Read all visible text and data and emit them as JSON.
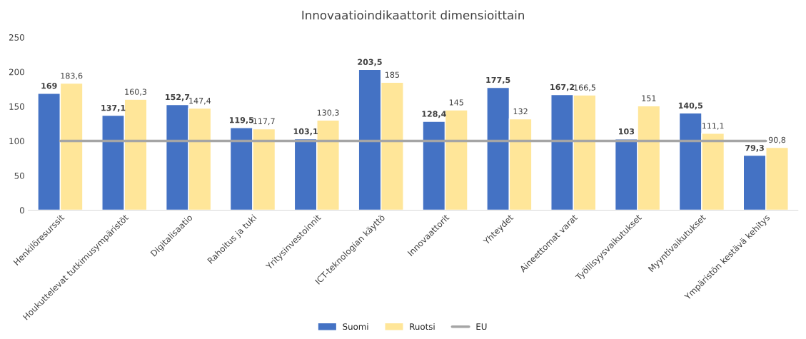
{
  "chart_data": {
    "type": "bar",
    "title": "Innovaatioindikaattorit dimensioittain",
    "categories": [
      "Henkilöresurssit",
      "Houkuttelevat tutkimusympäristöt",
      "Digitalisaatio",
      "Rahoitus ja tuki",
      "Yritysinvestoinnit",
      "ICT-teknologian käyttö",
      "Innovaattorit",
      "Yhteydet",
      "Aineettomat varat",
      "Työllisyysvaikutukset",
      "Myyntivaikutukset",
      "Ympäristön kestävä kehitys"
    ],
    "series": [
      {
        "name": "Suomi",
        "color": "#4472c4",
        "values": [
          169,
          137.1,
          152.7,
          119.5,
          103.1,
          203.5,
          128.4,
          177.5,
          167.2,
          103,
          140.5,
          79.3
        ],
        "value_labels": [
          "169",
          "137,1",
          "152,7",
          "119,5",
          "103,1",
          "203,5",
          "128,4",
          "177,5",
          "167,2",
          "103",
          "140,5",
          "79,3"
        ]
      },
      {
        "name": "Ruotsi",
        "color": "#ffe699",
        "values": [
          183.6,
          160.3,
          147.4,
          117.7,
          130.3,
          185,
          145,
          132,
          166.5,
          151,
          111.1,
          90.8
        ],
        "value_labels": [
          "183,6",
          "160,3",
          "147,4",
          "117,7",
          "130,3",
          "185",
          "145",
          "132",
          "166,5",
          "151",
          "111,1",
          "90,8"
        ]
      },
      {
        "name": "EU",
        "type": "line",
        "color": "#a5a5a5",
        "values": [
          100,
          100,
          100,
          100,
          100,
          100,
          100,
          100,
          100,
          100,
          100,
          100
        ]
      }
    ],
    "ylim": [
      0,
      250
    ],
    "yticks": [
      0,
      50,
      100,
      150,
      200,
      250
    ],
    "grid": false,
    "legend": "bottom"
  }
}
